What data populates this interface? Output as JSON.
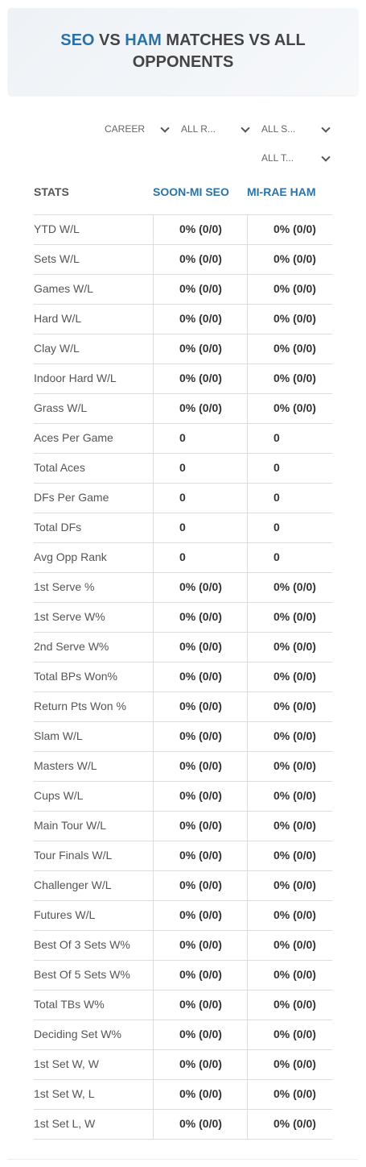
{
  "header": {
    "title": {
      "p1": "SEO",
      "p2": "VS",
      "p3": "HAM",
      "p4": "MATCHES VS ALL OPPONENTS"
    }
  },
  "filters": [
    "CAREER",
    "ALL R...",
    "ALL S...",
    "ALL T..."
  ],
  "table": {
    "columns": [
      "STATS",
      "SOON-MI SEO",
      "MI-RAE HAM"
    ],
    "rows": [
      [
        "YTD W/L",
        "0% (0/0)",
        "0% (0/0)"
      ],
      [
        "Sets W/L",
        "0% (0/0)",
        "0% (0/0)"
      ],
      [
        "Games W/L",
        "0% (0/0)",
        "0% (0/0)"
      ],
      [
        "Hard W/L",
        "0% (0/0)",
        "0% (0/0)"
      ],
      [
        "Clay W/L",
        "0% (0/0)",
        "0% (0/0)"
      ],
      [
        "Indoor Hard W/L",
        "0% (0/0)",
        "0% (0/0)"
      ],
      [
        "Grass W/L",
        "0% (0/0)",
        "0% (0/0)"
      ],
      [
        "Aces Per Game",
        0,
        0
      ],
      [
        "Total Aces",
        0,
        0
      ],
      [
        "DFs Per Game",
        0,
        0
      ],
      [
        "Total DFs",
        0,
        0
      ],
      [
        "Avg Opp Rank",
        0,
        0
      ],
      [
        "1st Serve %",
        "0% (0/0)",
        "0% (0/0)"
      ],
      [
        "1st Serve W%",
        "0% (0/0)",
        "0% (0/0)"
      ],
      [
        "2nd Serve W%",
        "0% (0/0)",
        "0% (0/0)"
      ],
      [
        "Total BPs Won%",
        "0% (0/0)",
        "0% (0/0)"
      ],
      [
        "Return Pts Won %",
        "0% (0/0)",
        "0% (0/0)"
      ],
      [
        "Slam W/L",
        "0% (0/0)",
        "0% (0/0)"
      ],
      [
        "Masters W/L",
        "0% (0/0)",
        "0% (0/0)"
      ],
      [
        "Cups W/L",
        "0% (0/0)",
        "0% (0/0)"
      ],
      [
        "Main Tour W/L",
        "0% (0/0)",
        "0% (0/0)"
      ],
      [
        "Tour Finals W/L",
        "0% (0/0)",
        "0% (0/0)"
      ],
      [
        "Challenger W/L",
        "0% (0/0)",
        "0% (0/0)"
      ],
      [
        "Futures W/L",
        "0% (0/0)",
        "0% (0/0)"
      ],
      [
        "Best Of 3 Sets W%",
        "0% (0/0)",
        "0% (0/0)"
      ],
      [
        "Best Of 5 Sets W%",
        "0% (0/0)",
        "0% (0/0)"
      ],
      [
        "Total TBs W%",
        "0% (0/0)",
        "0% (0/0)"
      ],
      [
        "Deciding Set W%",
        "0% (0/0)",
        "0% (0/0)"
      ],
      [
        "1st Set W, W",
        "0% (0/0)",
        "0% (0/0)"
      ],
      [
        "1st Set W, L",
        "0% (0/0)",
        "0% (0/0)"
      ],
      [
        "1st Set L, W",
        "0% (0/0)",
        "0% (0/0)"
      ]
    ]
  }
}
